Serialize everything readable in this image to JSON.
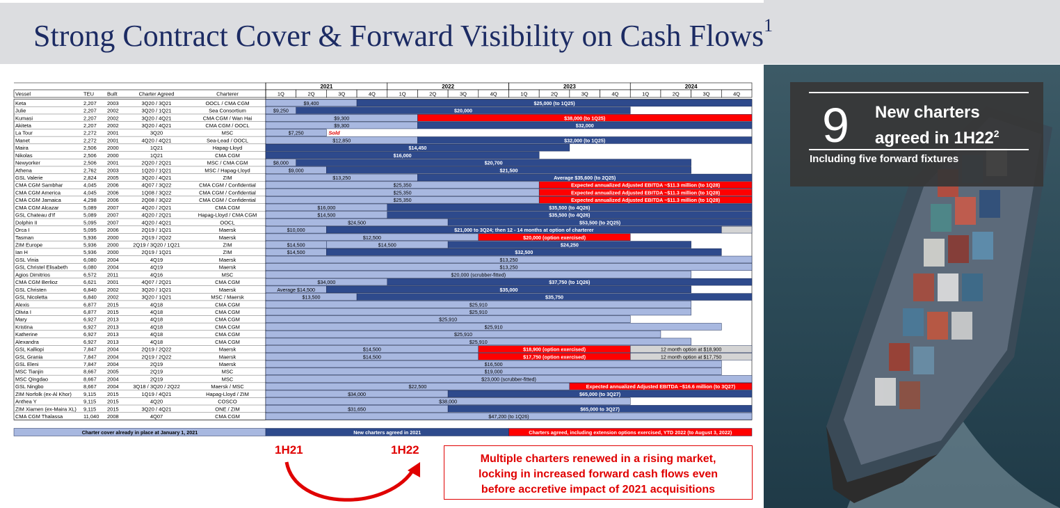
{
  "page": {
    "title": "Strong Contract Cover & Forward Visibility on Cash Flows",
    "title_sup": "1"
  },
  "callout": {
    "number": "9",
    "headline_1": "New charters",
    "headline_2": "agreed in 1H22",
    "headline_sup": "2",
    "sub": "Including five forward fixtures"
  },
  "takeaway": {
    "line1": "Multiple charters renewed in a rising market,",
    "line2": "locking in increased forward cash flows even",
    "line3": "before accretive impact of 2021 acquisitions"
  },
  "half_labels": {
    "left": "1H21",
    "right": "1H22"
  },
  "colors": {
    "navy": "#2e4a8c",
    "light": "#a8b8e0",
    "red": "#ff0000",
    "grey": "#d4d4d4",
    "title": "#1c2b63"
  },
  "chart_data": {
    "type": "table",
    "columns": [
      "Vessel",
      "TEU",
      "Built",
      "Charter Agreed",
      "Charterer"
    ],
    "years": [
      "2021",
      "2022",
      "2023",
      "2024"
    ],
    "quarters": [
      "1Q",
      "2Q",
      "3Q",
      "4Q"
    ],
    "rows": [
      {
        "vessel": "Keta",
        "teu": "2,207",
        "built": "2003",
        "agreed": "3Q20 / 3Q21",
        "charterer": "OOCL / CMA CGM",
        "segs": [
          [
            0,
            3,
            "L",
            "$9,400"
          ],
          [
            3,
            16,
            "N",
            "$25,000 (to 1Q25)"
          ]
        ]
      },
      {
        "vessel": "Julie",
        "teu": "2,207",
        "built": "2002",
        "agreed": "3Q20 / 1Q21",
        "charterer": "Sea Consortium",
        "segs": [
          [
            0,
            1,
            "L",
            "$9,250"
          ],
          [
            1,
            12,
            "N",
            "$20,000"
          ]
        ]
      },
      {
        "vessel": "Kumasi",
        "teu": "2,207",
        "built": "2002",
        "agreed": "3Q20 / 4Q21",
        "charterer": "CMA CGM / Wan Hai",
        "segs": [
          [
            0,
            5,
            "L",
            "$9,300"
          ],
          [
            5,
            16,
            "R",
            "$38,000 (to 1Q25)"
          ]
        ]
      },
      {
        "vessel": "Akiteta",
        "teu": "2,207",
        "built": "2002",
        "agreed": "3Q20 / 4Q21",
        "charterer": "CMA CGM / OOCL",
        "segs": [
          [
            0,
            5,
            "L",
            "$9,300"
          ],
          [
            5,
            16,
            "N",
            "$32,000"
          ]
        ]
      },
      {
        "vessel": "La Tour",
        "teu": "2,272",
        "built": "2001",
        "agreed": "3Q20",
        "charterer": "MSC",
        "segs": [
          [
            0,
            2,
            "L",
            "$7,250"
          ]
        ],
        "note": "Sold"
      },
      {
        "vessel": "Manet",
        "teu": "2,272",
        "built": "2001",
        "agreed": "4Q20 / 4Q21",
        "charterer": "Sea-Lead / OOCL",
        "segs": [
          [
            0,
            5,
            "L",
            "$12,850"
          ],
          [
            5,
            16,
            "N",
            "$32,000 (to 1Q25)"
          ]
        ]
      },
      {
        "vessel": "Maira",
        "teu": "2,506",
        "built": "2000",
        "agreed": "1Q21",
        "charterer": "Hapag-Lloyd",
        "segs": [
          [
            0,
            10,
            "N",
            "$14,450"
          ]
        ]
      },
      {
        "vessel": "Nikolas",
        "teu": "2,506",
        "built": "2000",
        "agreed": "1Q21",
        "charterer": "CMA CGM",
        "segs": [
          [
            0,
            9,
            "N",
            "$16,000"
          ]
        ]
      },
      {
        "vessel": "Newyorker",
        "teu": "2,506",
        "built": "2001",
        "agreed": "2Q20 / 2Q21",
        "charterer": "MSC / CMA CGM",
        "segs": [
          [
            0,
            1,
            "L",
            "$8,000"
          ],
          [
            1,
            14,
            "N",
            "$20,700"
          ]
        ]
      },
      {
        "vessel": "Athena",
        "teu": "2,762",
        "built": "2003",
        "agreed": "1Q20 / 1Q21",
        "charterer": "MSC / Hapag-Lloyd",
        "segs": [
          [
            0,
            2,
            "L",
            "$9,000"
          ],
          [
            2,
            14,
            "N",
            "$21,500"
          ]
        ]
      },
      {
        "vessel": "GSL Valerie",
        "teu": "2,824",
        "built": "2005",
        "agreed": "3Q20 / 4Q21",
        "charterer": "ZIM",
        "segs": [
          [
            0,
            5,
            "L",
            "$13,250"
          ],
          [
            5,
            16,
            "N",
            "Average $35,600 (to 2Q25)"
          ]
        ]
      },
      {
        "vessel": "CMA CGM Sambhar",
        "teu": "4,045",
        "built": "2006",
        "agreed": "4Q07 / 3Q22",
        "charterer": "CMA CGM / Confidential",
        "segs": [
          [
            0,
            9,
            "L",
            "$25,350"
          ],
          [
            9,
            16,
            "R",
            "Expected annualized Adjusted EBITDA ~$11.3 million (to 1Q28)"
          ]
        ]
      },
      {
        "vessel": "CMA CGM America",
        "teu": "4,045",
        "built": "2006",
        "agreed": "1Q08 / 3Q22",
        "charterer": "CMA CGM / Confidential",
        "segs": [
          [
            0,
            9,
            "L",
            "$25,350"
          ],
          [
            9,
            16,
            "R",
            "Expected annualized Adjusted EBITDA ~$11.3 million (to 1Q28)"
          ]
        ]
      },
      {
        "vessel": "CMA CGM Jamaica",
        "teu": "4,298",
        "built": "2006",
        "agreed": "2Q08 / 3Q22",
        "charterer": "CMA CGM / Confidential",
        "segs": [
          [
            0,
            9,
            "L",
            "$25,350"
          ],
          [
            9,
            16,
            "R",
            "Expected annualized Adjusted EBITDA ~$11.3 million (to 1Q28)"
          ]
        ]
      },
      {
        "vessel": "CMA CGM Alcazar",
        "teu": "5,089",
        "built": "2007",
        "agreed": "4Q20 / 2Q21",
        "charterer": "CMA CGM",
        "segs": [
          [
            0,
            4,
            "L",
            "$16,000"
          ],
          [
            4,
            16,
            "N",
            "$35,500 (to 4Q26)"
          ]
        ]
      },
      {
        "vessel": "GSL Chateau d'If",
        "teu": "5,089",
        "built": "2007",
        "agreed": "4Q20 / 2Q21",
        "charterer": "Hapag-Lloyd / CMA CGM",
        "segs": [
          [
            0,
            4,
            "L",
            "$14,500"
          ],
          [
            4,
            16,
            "N",
            "$35,500 (to 4Q26)"
          ]
        ]
      },
      {
        "vessel": "Dolphin II",
        "teu": "5,095",
        "built": "2007",
        "agreed": "4Q20 / 4Q21",
        "charterer": "OOCL",
        "segs": [
          [
            0,
            6,
            "L",
            "$24,500"
          ],
          [
            6,
            16,
            "N",
            "$53,500 (to 2Q25)"
          ]
        ]
      },
      {
        "vessel": "Orca I",
        "teu": "5,095",
        "built": "2006",
        "agreed": "2Q19 / 1Q21",
        "charterer": "Maersk",
        "segs": [
          [
            0,
            2,
            "L",
            "$10,000"
          ],
          [
            2,
            15,
            "N",
            "$21,000 to 3Q24; then 12 - 14 months at option of charterer"
          ],
          [
            15,
            16,
            "G",
            ""
          ]
        ]
      },
      {
        "vessel": "Tasman",
        "teu": "5,936",
        "built": "2000",
        "agreed": "2Q19 / 2Q22",
        "charterer": "Maersk",
        "segs": [
          [
            0,
            7,
            "L",
            "$12,500"
          ],
          [
            7,
            12,
            "R",
            "$20,000 (option exercised)"
          ]
        ]
      },
      {
        "vessel": "ZIM Europe",
        "teu": "5,936",
        "built": "2000",
        "agreed": "2Q19 / 3Q20 / 1Q21",
        "charterer": "ZIM",
        "segs": [
          [
            0,
            2,
            "L",
            "$14,500"
          ],
          [
            2,
            6,
            "L",
            "$14,500"
          ],
          [
            6,
            14,
            "N",
            "$24,250"
          ]
        ]
      },
      {
        "vessel": "Ian H",
        "teu": "5,936",
        "built": "2000",
        "agreed": "2Q19 / 1Q21",
        "charterer": "ZIM",
        "segs": [
          [
            0,
            2,
            "L",
            "$14,500"
          ],
          [
            2,
            15,
            "N",
            "$32,500"
          ]
        ]
      },
      {
        "vessel": "GSL Vinia",
        "teu": "6,080",
        "built": "2004",
        "agreed": "4Q19",
        "charterer": "Maersk",
        "segs": [
          [
            0,
            16,
            "L",
            "$13,250"
          ]
        ]
      },
      {
        "vessel": "GSL Christel Elisabeth",
        "teu": "6,080",
        "built": "2004",
        "agreed": "4Q19",
        "charterer": "Maersk",
        "segs": [
          [
            0,
            16,
            "L",
            "$13,250"
          ]
        ]
      },
      {
        "vessel": "Agios Dimitrios",
        "teu": "6,572",
        "built": "2011",
        "agreed": "4Q16",
        "charterer": "MSC",
        "segs": [
          [
            0,
            14,
            "L",
            "$20,000 (scrubber-fitted)"
          ]
        ]
      },
      {
        "vessel": "CMA CGM Berlioz",
        "teu": "6,621",
        "built": "2001",
        "agreed": "4Q07 / 2Q21",
        "charterer": "CMA CGM",
        "segs": [
          [
            0,
            4,
            "L",
            "$34,000"
          ],
          [
            4,
            16,
            "N",
            "$37,750 (to 1Q26)"
          ]
        ]
      },
      {
        "vessel": "GSL Christen",
        "teu": "6,840",
        "built": "2002",
        "agreed": "3Q20 / 1Q21",
        "charterer": "Maersk",
        "segs": [
          [
            0,
            2,
            "L",
            "Average $14,500"
          ],
          [
            2,
            14,
            "N",
            "$35,000"
          ]
        ]
      },
      {
        "vessel": "GSL Nicoletta",
        "teu": "6,840",
        "built": "2002",
        "agreed": "3Q20 / 1Q21",
        "charterer": "MSC / Maersk",
        "segs": [
          [
            0,
            3,
            "L",
            "$13,500"
          ],
          [
            3,
            16,
            "N",
            "$35,750"
          ]
        ]
      },
      {
        "vessel": "Alexis",
        "teu": "6,877",
        "built": "2015",
        "agreed": "4Q18",
        "charterer": "CMA CGM",
        "segs": [
          [
            0,
            14,
            "L",
            "$25,910"
          ]
        ]
      },
      {
        "vessel": "Olivia I",
        "teu": "6,877",
        "built": "2015",
        "agreed": "4Q18",
        "charterer": "CMA CGM",
        "segs": [
          [
            0,
            14,
            "L",
            "$25,910"
          ]
        ]
      },
      {
        "vessel": "Mary",
        "teu": "6,927",
        "built": "2013",
        "agreed": "4Q18",
        "charterer": "CMA CGM",
        "segs": [
          [
            0,
            12,
            "L",
            "$25,910"
          ]
        ]
      },
      {
        "vessel": "Kristina",
        "teu": "6,927",
        "built": "2013",
        "agreed": "4Q18",
        "charterer": "CMA CGM",
        "segs": [
          [
            0,
            15,
            "L",
            "$25,910"
          ]
        ]
      },
      {
        "vessel": "Katherine",
        "teu": "6,927",
        "built": "2013",
        "agreed": "4Q18",
        "charterer": "CMA CGM",
        "segs": [
          [
            0,
            13,
            "L",
            "$25,910"
          ]
        ]
      },
      {
        "vessel": "Alexandra",
        "teu": "6,927",
        "built": "2013",
        "agreed": "4Q18",
        "charterer": "CMA CGM",
        "segs": [
          [
            0,
            14,
            "L",
            "$25,910"
          ]
        ]
      },
      {
        "vessel": "GSL Kalliopi",
        "teu": "7,847",
        "built": "2004",
        "agreed": "2Q19 / 2Q22",
        "charterer": "Maersk",
        "segs": [
          [
            0,
            7,
            "L",
            "$14,500"
          ],
          [
            7,
            12,
            "R",
            "$18,900 (option exercised)"
          ],
          [
            12,
            16,
            "G",
            "12 month option at $18,900"
          ]
        ]
      },
      {
        "vessel": "GSL Grania",
        "teu": "7,847",
        "built": "2004",
        "agreed": "2Q19 / 2Q22",
        "charterer": "Maersk",
        "segs": [
          [
            0,
            7,
            "L",
            "$14,500"
          ],
          [
            7,
            12,
            "R",
            "$17,750 (option exercised)"
          ],
          [
            12,
            16,
            "G",
            "12 month option at $17,750"
          ]
        ]
      },
      {
        "vessel": "GSL Eleni",
        "teu": "7,847",
        "built": "2004",
        "agreed": "2Q19",
        "charterer": "Maersk",
        "segs": [
          [
            0,
            15,
            "L",
            "$16,500"
          ]
        ]
      },
      {
        "vessel": "MSC Tianjin",
        "teu": "8,667",
        "built": "2005",
        "agreed": "2Q19",
        "charterer": "MSC",
        "segs": [
          [
            0,
            15,
            "L",
            "$19,000"
          ]
        ]
      },
      {
        "vessel": "MSC Qingdao",
        "teu": "8,667",
        "built": "2004",
        "agreed": "2Q19",
        "charterer": "MSC",
        "segs": [
          [
            0,
            16,
            "L",
            "$23,000 (scrubber-fitted)"
          ]
        ]
      },
      {
        "vessel": "GSL Ningbo",
        "teu": "8,667",
        "built": "2004",
        "agreed": "3Q18 / 3Q20 / 2Q22",
        "charterer": "Maersk / MSC",
        "segs": [
          [
            0,
            10,
            "L",
            "$22,500"
          ],
          [
            10,
            16,
            "R",
            "Expected annualized Adjusted EBITDA ~$16.6 million (to 3Q27)"
          ]
        ]
      },
      {
        "vessel": "ZIM Norfolk (ex-Al Khor)",
        "teu": "9,115",
        "built": "2015",
        "agreed": "1Q19 / 4Q21",
        "charterer": "Hapag-Lloyd / ZIM",
        "segs": [
          [
            0,
            6,
            "L",
            "$34,000"
          ],
          [
            6,
            16,
            "N",
            "$65,000 (to 3Q27)"
          ]
        ]
      },
      {
        "vessel": "Anthea Y",
        "teu": "9,115",
        "built": "2015",
        "agreed": "4Q20",
        "charterer": "COSCO",
        "segs": [
          [
            0,
            12,
            "L",
            "$38,000"
          ]
        ]
      },
      {
        "vessel": "ZIM Xiamen (ex-Maira XL)",
        "teu": "9,115",
        "built": "2015",
        "agreed": "3Q20 / 4Q21",
        "charterer": "ONE / ZIM",
        "segs": [
          [
            0,
            6,
            "L",
            "$31,650"
          ],
          [
            6,
            16,
            "N",
            "$65,000 to 3Q27)"
          ]
        ]
      },
      {
        "vessel": "CMA CGM Thalassa",
        "teu": "11,040",
        "built": "2008",
        "agreed": "4Q07",
        "charterer": "CMA CGM",
        "segs": [
          [
            0,
            16,
            "L",
            "$47,200 (to 1Q26)"
          ]
        ]
      }
    ],
    "legend": [
      {
        "label": "Charter cover already in place at January 1, 2021",
        "color": "L"
      },
      {
        "label": "New charters agreed in 2021",
        "color": "N"
      },
      {
        "label": "Charters agreed, including extension options exercised, YTD 2022 (to August 3, 2022)",
        "color": "R"
      }
    ]
  }
}
